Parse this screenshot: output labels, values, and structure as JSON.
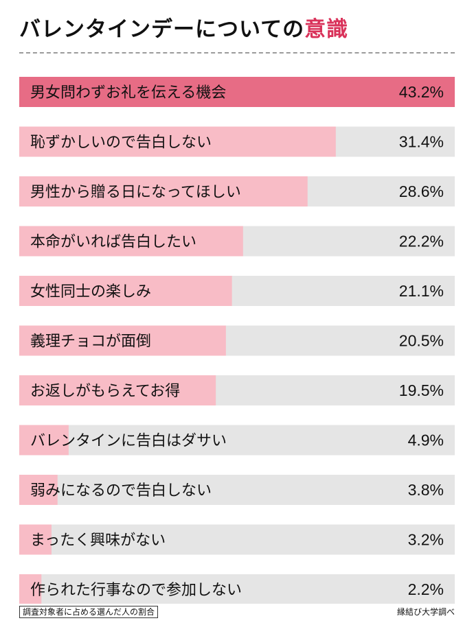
{
  "title": {
    "main": "バレンタインデーについての",
    "accent": "意識"
  },
  "footnote": "調査対象者に占める選んだ人の割合",
  "source": "縁結び大学調べ",
  "colors": {
    "track": "#e5e5e5",
    "bar": "#f8bcc6",
    "bar_highlight": "#e76c85",
    "accent_text": "#d9325a",
    "text": "#111111"
  },
  "chart_data": {
    "type": "bar",
    "orientation": "horizontal",
    "unit": "%",
    "xlim": [
      0,
      43.2
    ],
    "categories": [
      "男女問わずお礼を伝える機会",
      "恥ずかしいので告白しない",
      "男性から贈る日になってほしい",
      "本命がいれば告白したい",
      "女性同士の楽しみ",
      "義理チョコが面倒",
      "お返しがもらえてお得",
      "バレンタインに告白はダサい",
      "弱みになるので告白しない",
      "まったく興味がない",
      "作られた行事なので参加しない"
    ],
    "values": [
      43.2,
      31.4,
      28.6,
      22.2,
      21.1,
      20.5,
      19.5,
      4.9,
      3.8,
      3.2,
      2.2
    ],
    "value_labels": [
      "43.2%",
      "31.4%",
      "28.6%",
      "22.2%",
      "21.1%",
      "20.5%",
      "19.5%",
      "4.9%",
      "3.8%",
      "3.2%",
      "2.2%"
    ],
    "highlight_index": 0
  }
}
